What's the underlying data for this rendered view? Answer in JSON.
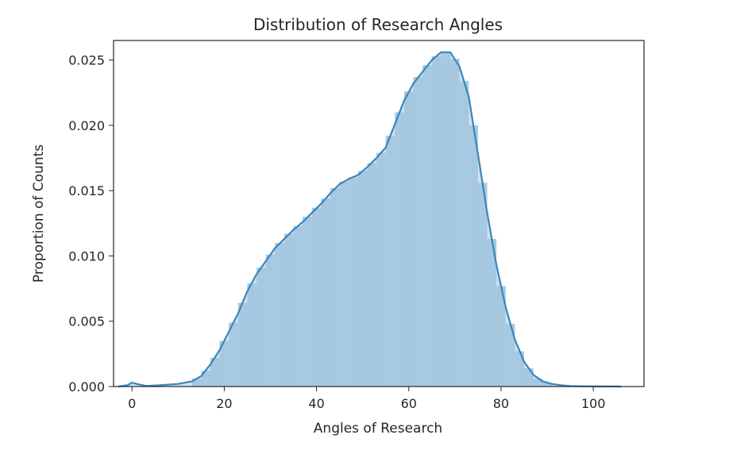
{
  "chart_data": {
    "type": "area",
    "title": "Distribution of Research Angles",
    "xlabel": "Angles of Research",
    "ylabel": "Proportion of Counts",
    "xlim": [
      -4,
      111
    ],
    "ylim": [
      0,
      0.0265
    ],
    "x_ticks": [
      0,
      20,
      40,
      60,
      80,
      100
    ],
    "x_tick_labels": [
      "0",
      "20",
      "40",
      "60",
      "80",
      "100"
    ],
    "y_ticks": [
      0,
      0.005,
      0.01,
      0.015,
      0.02,
      0.025
    ],
    "y_tick_labels": [
      "0.000",
      "0.005",
      "0.010",
      "0.015",
      "0.020",
      "0.025"
    ],
    "grid": false,
    "legend": "none",
    "colors": {
      "fill": "#a6c8e0",
      "line": "#3a86bd",
      "axes": "#262626"
    },
    "series": [
      {
        "x": [
          -3,
          -1,
          0,
          1,
          3,
          6,
          10,
          13,
          15,
          17,
          19,
          21,
          23,
          25,
          27,
          29,
          31,
          33,
          35,
          37,
          39,
          41,
          43,
          45,
          47,
          49,
          51,
          53,
          55,
          57,
          59,
          61,
          63,
          65,
          67,
          69,
          71,
          73,
          75,
          77,
          79,
          81,
          83,
          85,
          87,
          89,
          91,
          93,
          95,
          98,
          101,
          106
        ],
        "y": [
          0.0,
          0.0001,
          0.0003,
          0.0002,
          5e-05,
          0.0001,
          0.0002,
          0.0004,
          0.0008,
          0.0017,
          0.0028,
          0.0042,
          0.0056,
          0.0073,
          0.0086,
          0.0096,
          0.0106,
          0.0113,
          0.012,
          0.0126,
          0.0133,
          0.014,
          0.0148,
          0.0155,
          0.0159,
          0.0162,
          0.0168,
          0.0175,
          0.0183,
          0.0201,
          0.0219,
          0.0232,
          0.0241,
          0.025,
          0.0256,
          0.0256,
          0.0245,
          0.0222,
          0.0178,
          0.0133,
          0.0093,
          0.0061,
          0.0036,
          0.0019,
          0.0009,
          0.0004,
          0.0002,
          0.0001,
          4e-05,
          2e-05,
          1e-05,
          0.0
        ]
      }
    ],
    "histogram": {
      "bin_edges": [
        13,
        15,
        17,
        19,
        21,
        23,
        25,
        27,
        29,
        31,
        33,
        35,
        37,
        39,
        41,
        43,
        45,
        47,
        49,
        51,
        53,
        55,
        57,
        59,
        61,
        63,
        65,
        67,
        69,
        71,
        73,
        75,
        77,
        79,
        81,
        83,
        85,
        87,
        89,
        91
      ],
      "values": [
        0.0006,
        0.0012,
        0.0022,
        0.0035,
        0.0049,
        0.0064,
        0.0079,
        0.0091,
        0.0101,
        0.011,
        0.0117,
        0.0123,
        0.013,
        0.0137,
        0.0144,
        0.0152,
        0.0157,
        0.016,
        0.0165,
        0.0171,
        0.0179,
        0.0192,
        0.021,
        0.0226,
        0.0237,
        0.0246,
        0.0253,
        0.0256,
        0.0251,
        0.0234,
        0.02,
        0.0156,
        0.0113,
        0.0077,
        0.0048,
        0.0027,
        0.0014,
        0.0006,
        0.0003
      ]
    }
  }
}
